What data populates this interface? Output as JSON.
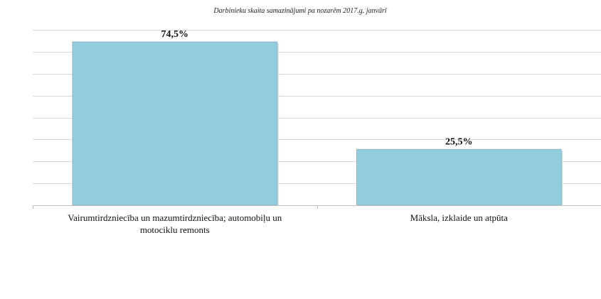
{
  "chart_data": {
    "type": "bar",
    "title": "Darbinieku skaita samazinājumi pa nozarēm 2017.g. janvārī",
    "categories": [
      [
        "Vairumtirdzniecība un mazumtirdzniecība; automobiļu un",
        "motociklu remonts"
      ],
      [
        "Māksla, izklaide un atpūta"
      ]
    ],
    "values": [
      74.5,
      25.5
    ],
    "data_labels": [
      "74,5%",
      "25,5%"
    ],
    "ylim": [
      0,
      80
    ],
    "y_grid_step": 10,
    "grid": true,
    "legend": false,
    "colors": {
      "bar": "#92cddc",
      "grid": "#d9d9d9"
    }
  }
}
